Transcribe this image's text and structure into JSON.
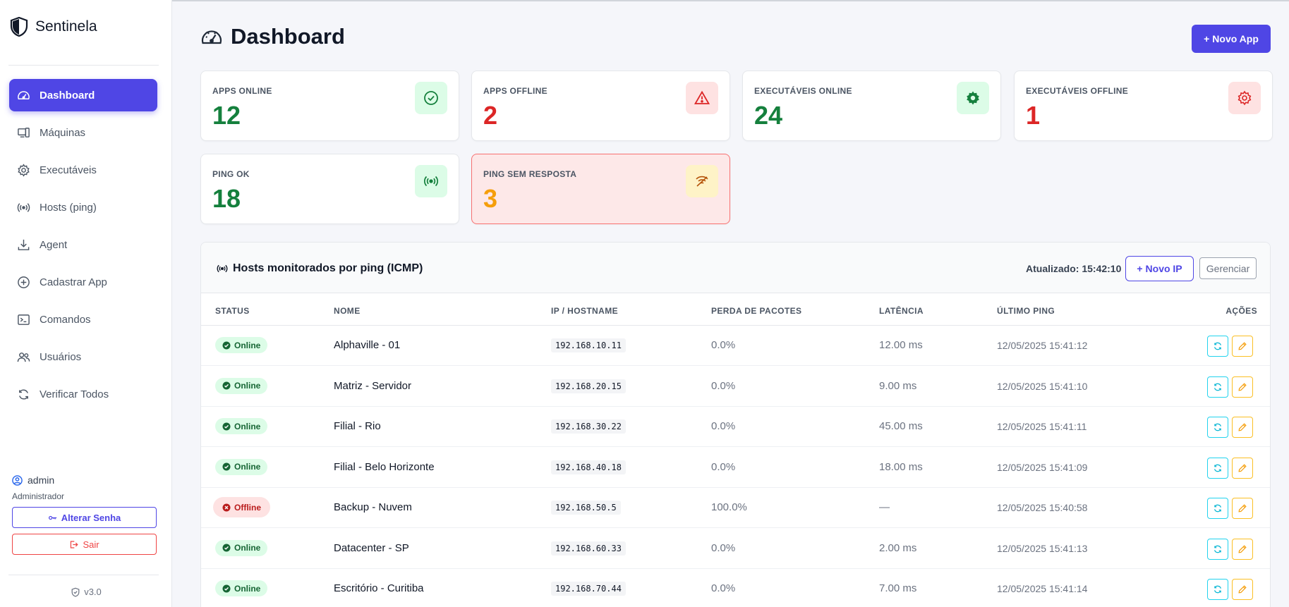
{
  "brand": {
    "name": "Sentinela"
  },
  "sidebar": {
    "items": [
      {
        "label": "Dashboard",
        "icon": "gauge-icon",
        "active": true
      },
      {
        "label": "Máquinas",
        "icon": "devices-icon"
      },
      {
        "label": "Executáveis",
        "icon": "gear-icon"
      },
      {
        "label": "Hosts (ping)",
        "icon": "broadcast-icon"
      },
      {
        "label": "Agent",
        "icon": "download-icon"
      },
      {
        "label": "Cadastrar App",
        "icon": "plus-circle-icon"
      },
      {
        "label": "Comandos",
        "icon": "terminal-icon"
      },
      {
        "label": "Usuários",
        "icon": "users-icon"
      },
      {
        "label": "Verificar Todos",
        "icon": "refresh-icon"
      }
    ],
    "user": {
      "name": "admin",
      "role": "Administrador"
    },
    "change_password": "Alterar Senha",
    "logout": "Sair",
    "version": "v3.0"
  },
  "header": {
    "title": "Dashboard",
    "new_app": "Novo App"
  },
  "cards": [
    {
      "label": "APPS ONLINE",
      "value": "12",
      "icon": "check-circle-icon"
    },
    {
      "label": "APPS OFFLINE",
      "value": "2",
      "icon": "warning-icon"
    },
    {
      "label": "EXECUTÁVEIS ONLINE",
      "value": "24",
      "icon": "gear-icon"
    },
    {
      "label": "EXECUTÁVEIS OFFLINE",
      "value": "1",
      "icon": "gear-icon"
    },
    {
      "label": "PING OK",
      "value": "18",
      "icon": "broadcast-icon"
    },
    {
      "label": "PING SEM RESPOSTA",
      "value": "3",
      "icon": "broadcast-off-icon"
    }
  ],
  "hosts": {
    "title": "Hosts monitorados por ping (ICMP)",
    "updated": "Atualizado: 15:42:10",
    "new_ip": "Novo IP",
    "manage": "Gerenciar",
    "columns": [
      "STATUS",
      "NOME",
      "IP / HOSTNAME",
      "PERDA DE PACOTES",
      "LATÊNCIA",
      "ÚLTIMO PING",
      "AÇÕES"
    ],
    "rows": [
      {
        "status": "Online",
        "name": "Alphaville - 01",
        "ip": "192.168.10.11",
        "loss": "0.0%",
        "latency": "12.00 ms",
        "last": "12/05/2025 15:41:12"
      },
      {
        "status": "Online",
        "name": "Matriz - Servidor",
        "ip": "192.168.20.15",
        "loss": "0.0%",
        "latency": "9.00 ms",
        "last": "12/05/2025 15:41:10"
      },
      {
        "status": "Online",
        "name": "Filial - Rio",
        "ip": "192.168.30.22",
        "loss": "0.0%",
        "latency": "45.00 ms",
        "last": "12/05/2025 15:41:11"
      },
      {
        "status": "Online",
        "name": "Filial - Belo Horizonte",
        "ip": "192.168.40.18",
        "loss": "0.0%",
        "latency": "18.00 ms",
        "last": "12/05/2025 15:41:09"
      },
      {
        "status": "Offline",
        "name": "Backup - Nuvem",
        "ip": "192.168.50.5",
        "loss": "100.0%",
        "latency": "—",
        "last": "12/05/2025 15:40:58"
      },
      {
        "status": "Online",
        "name": "Datacenter - SP",
        "ip": "192.168.60.33",
        "loss": "0.0%",
        "latency": "2.00 ms",
        "last": "12/05/2025 15:41:13"
      },
      {
        "status": "Online",
        "name": "Escritório - Curitiba",
        "ip": "192.168.70.44",
        "loss": "0.0%",
        "latency": "7.00 ms",
        "last": "12/05/2025 15:41:14"
      }
    ]
  }
}
